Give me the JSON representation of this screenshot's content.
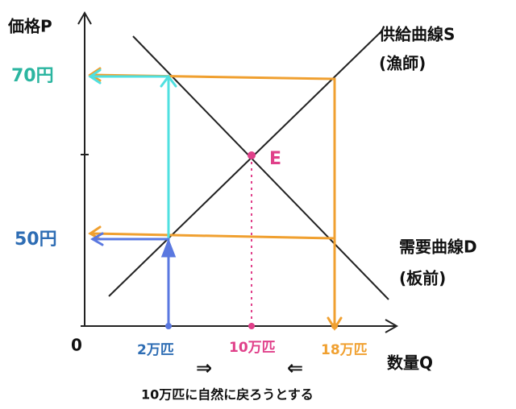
{
  "axes": {
    "y_label": "価格P",
    "x_label": "数量Q",
    "origin": "0"
  },
  "supply": {
    "label": "供給曲線S",
    "sub": "(漁師)"
  },
  "demand": {
    "label": "需要曲線D",
    "sub": "(板前)"
  },
  "prices": {
    "high": "70円",
    "low": "50円"
  },
  "equilibrium": "E",
  "quantities": {
    "low": "2万匹",
    "mid": "10万匹",
    "high": "18万匹"
  },
  "arrows": {
    "right": "⇒",
    "left": "⇐"
  },
  "caption": "10万匹に自然に戻ろうとする"
}
